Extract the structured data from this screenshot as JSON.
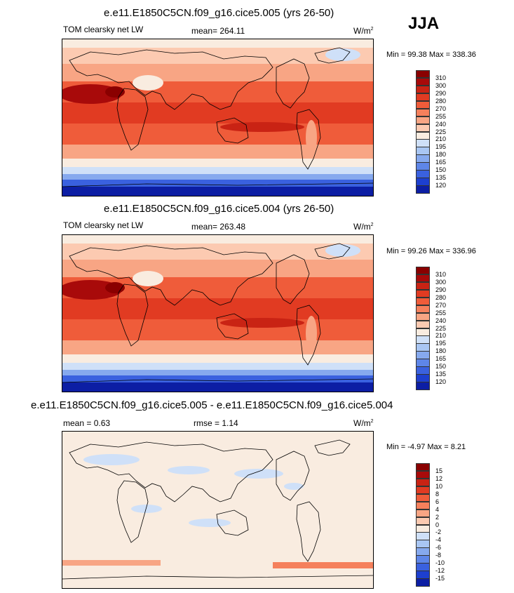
{
  "season": "JJA",
  "panels": [
    {
      "title": "e.e11.E1850C5CN.f09_g16.cice5.005 (yrs 26-50)",
      "left_label": "TOM clearsky net LW",
      "mid_label": "mean= 264.11",
      "units": "W/m",
      "units_sup": "2",
      "stats": "Min =  99.38 Max = 338.36",
      "levels": [
        "310",
        "300",
        "290",
        "280",
        "270",
        "255",
        "240",
        "225",
        "210",
        "195",
        "180",
        "165",
        "150",
        "135",
        "120"
      ],
      "colors": [
        "#8a0000",
        "#a80a0a",
        "#c92314",
        "#e13b22",
        "#ef5c3a",
        "#f5805c",
        "#f8a584",
        "#fccab1",
        "#f9ece0",
        "#cfe0f8",
        "#a9c6f3",
        "#86a9ee",
        "#5e86e8",
        "#3a61df",
        "#1d3fcf",
        "#0c1ea4"
      ],
      "kind": "abs"
    },
    {
      "title": "e.e11.E1850C5CN.f09_g16.cice5.004 (yrs 26-50)",
      "left_label": "TOM clearsky net LW",
      "mid_label": "mean= 263.48",
      "units": "W/m",
      "units_sup": "2",
      "stats": "Min =  99.26 Max = 336.96",
      "levels": [
        "310",
        "300",
        "290",
        "280",
        "270",
        "255",
        "240",
        "225",
        "210",
        "195",
        "180",
        "165",
        "150",
        "135",
        "120"
      ],
      "colors": [
        "#8a0000",
        "#a80a0a",
        "#c92314",
        "#e13b22",
        "#ef5c3a",
        "#f5805c",
        "#f8a584",
        "#fccab1",
        "#f9ece0",
        "#cfe0f8",
        "#a9c6f3",
        "#86a9ee",
        "#5e86e8",
        "#3a61df",
        "#1d3fcf",
        "#0c1ea4"
      ],
      "kind": "abs"
    },
    {
      "title": "e.e11.E1850C5CN.f09_g16.cice5.005 - e.e11.E1850C5CN.f09_g16.cice5.004",
      "left_label": "mean =   0.63",
      "mid_label": "rmse =   1.14",
      "units": "W/m",
      "units_sup": "2",
      "stats": "Min =  -4.97 Max =   8.21",
      "levels": [
        "15",
        "12",
        "10",
        "8",
        "6",
        "4",
        "2",
        "0",
        "-2",
        "-4",
        "-6",
        "-8",
        "-10",
        "-12",
        "-15"
      ],
      "colors": [
        "#8a0000",
        "#a80a0a",
        "#c92314",
        "#e13b22",
        "#ef5c3a",
        "#f5805c",
        "#f8a584",
        "#fccab1",
        "#f9ece0",
        "#cfe0f8",
        "#a9c6f3",
        "#86a9ee",
        "#5e86e8",
        "#3a61df",
        "#1d3fcf",
        "#0c1ea4"
      ],
      "kind": "diff"
    }
  ]
}
